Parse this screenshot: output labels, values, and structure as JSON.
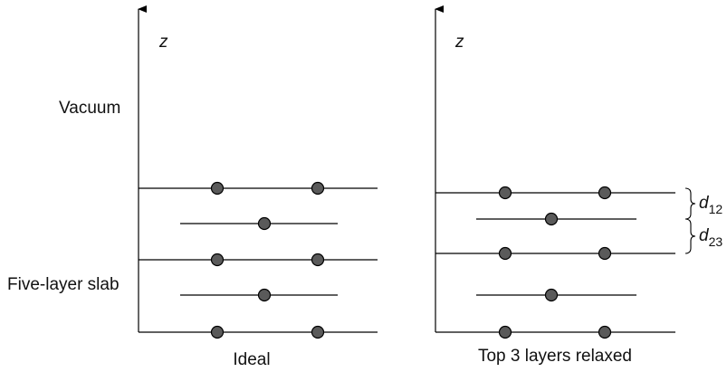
{
  "left_panel": {
    "axis_label": "z",
    "region_labels": {
      "vacuum": "Vacuum",
      "slab": "Five-layer slab"
    },
    "caption": "Ideal"
  },
  "right_panel": {
    "axis_label": "z",
    "caption": "Top 3 layers relaxed",
    "spacing_labels": [
      {
        "base": "d",
        "sub": "12"
      },
      {
        "base": "d",
        "sub": "23"
      }
    ]
  },
  "colors": {
    "atom_fill": "#5a5a5a",
    "line": "#000000"
  }
}
